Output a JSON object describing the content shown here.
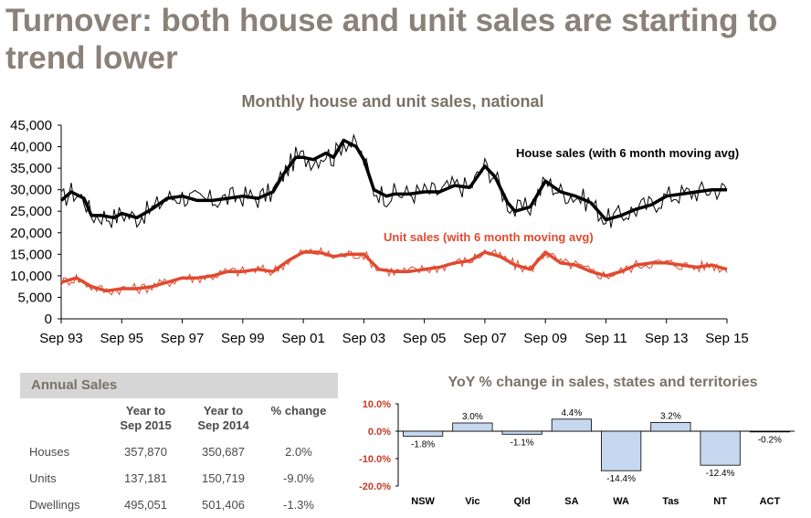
{
  "headline": "Turnover: both house and unit sales are starting to trend lower",
  "chart_data": [
    {
      "type": "line",
      "title": "Monthly house and unit sales, national",
      "ylim": [
        0,
        45000
      ],
      "y_ticks": [
        "0",
        "5,000",
        "10,000",
        "15,000",
        "20,000",
        "25,000",
        "30,000",
        "35,000",
        "40,000",
        "45,000"
      ],
      "x_ticks": [
        "Sep 93",
        "Sep 95",
        "Sep 97",
        "Sep 99",
        "Sep 01",
        "Sep 03",
        "Sep 05",
        "Sep 07",
        "Sep 09",
        "Sep 11",
        "Sep 13",
        "Sep 15"
      ],
      "x_range": [
        "1993-09",
        "2015-09"
      ],
      "grid": false,
      "series": [
        {
          "name": "House sales (with 6 month moving avg)",
          "color": "#000000",
          "x": [
            "1993-09",
            "1994-01",
            "1994-06",
            "1994-09",
            "1995-01",
            "1995-06",
            "1995-09",
            "1996-03",
            "1996-09",
            "1997-03",
            "1997-09",
            "1998-03",
            "1998-09",
            "1999-03",
            "1999-09",
            "2000-03",
            "2000-09",
            "2001-01",
            "2001-06",
            "2001-09",
            "2002-01",
            "2002-06",
            "2002-09",
            "2003-01",
            "2003-06",
            "2003-09",
            "2004-01",
            "2004-06",
            "2004-09",
            "2005-03",
            "2005-09",
            "2006-03",
            "2006-09",
            "2007-03",
            "2007-09",
            "2008-01",
            "2008-06",
            "2008-09",
            "2009-03",
            "2009-09",
            "2010-03",
            "2010-09",
            "2011-03",
            "2011-09",
            "2012-03",
            "2012-09",
            "2013-03",
            "2013-09",
            "2014-03",
            "2014-09",
            "2015-03",
            "2015-09"
          ],
          "values": [
            27500,
            29500,
            28000,
            24000,
            24000,
            23500,
            24500,
            23500,
            25500,
            28000,
            28500,
            27500,
            27500,
            28000,
            28500,
            28000,
            29500,
            33500,
            37500,
            37500,
            37000,
            38500,
            37500,
            41500,
            40000,
            37000,
            30000,
            28500,
            29000,
            29000,
            29500,
            29500,
            31000,
            30500,
            35500,
            33000,
            27000,
            25000,
            26000,
            32000,
            29500,
            28500,
            27000,
            23000,
            24000,
            25500,
            26500,
            28500,
            29000,
            29500,
            30000,
            30000
          ]
        },
        {
          "name": "Unit sales (with 6 month moving avg)",
          "color": "#e04a2f",
          "x": [
            "1993-09",
            "1994-03",
            "1994-09",
            "1995-03",
            "1995-09",
            "1996-03",
            "1996-09",
            "1997-03",
            "1997-09",
            "1998-03",
            "1998-09",
            "1999-03",
            "1999-09",
            "2000-03",
            "2000-09",
            "2001-03",
            "2001-09",
            "2002-03",
            "2002-09",
            "2003-03",
            "2003-09",
            "2004-03",
            "2004-09",
            "2005-03",
            "2005-09",
            "2006-03",
            "2006-09",
            "2007-03",
            "2007-09",
            "2008-03",
            "2008-09",
            "2009-03",
            "2009-09",
            "2010-03",
            "2010-09",
            "2011-03",
            "2011-09",
            "2012-03",
            "2012-09",
            "2013-03",
            "2013-09",
            "2014-03",
            "2014-09",
            "2015-03",
            "2015-09"
          ],
          "values": [
            8500,
            9500,
            7500,
            6500,
            7000,
            7000,
            7500,
            8500,
            9500,
            9500,
            10000,
            11000,
            11000,
            11500,
            11000,
            13500,
            15500,
            15500,
            14500,
            15000,
            15000,
            11500,
            11000,
            11000,
            11500,
            12000,
            13000,
            13500,
            15500,
            14500,
            12500,
            11500,
            15500,
            13000,
            12500,
            11000,
            10000,
            11000,
            12500,
            13000,
            13000,
            12500,
            12000,
            12500,
            11500
          ]
        }
      ],
      "annotations": [
        "House sales (with 6 month moving avg)",
        "Unit sales (with 6 month moving avg)"
      ]
    },
    {
      "type": "bar",
      "title": "YoY % change in sales, states and territories",
      "categories": [
        "NSW",
        "Vic",
        "Qld",
        "SA",
        "WA",
        "Tas",
        "NT",
        "ACT"
      ],
      "values": [
        -1.8,
        3.0,
        -1.1,
        4.4,
        -14.4,
        3.2,
        -12.4,
        -0.2
      ],
      "data_labels": [
        "-1.8%",
        "3.0%",
        "-1.1%",
        "4.4%",
        "-14.4%",
        "3.2%",
        "-12.4%",
        "-0.2%"
      ],
      "ylim": [
        -20,
        10
      ],
      "y_ticks": [
        "10.0%",
        "0.0%",
        "-10.0%",
        "-20.0%"
      ],
      "color": "#c6d8ef"
    }
  ],
  "annual_sales": {
    "title": "Annual Sales",
    "headers": [
      "",
      "Year to\nSep 2015",
      "Year to\nSep 2014",
      "% change"
    ],
    "rows": [
      [
        "Houses",
        "357,870",
        "350,687",
        "2.0%"
      ],
      [
        "Units",
        "137,181",
        "150,719",
        "-9.0%"
      ],
      [
        "Dwellings",
        "495,051",
        "501,406",
        "-1.3%"
      ]
    ]
  }
}
